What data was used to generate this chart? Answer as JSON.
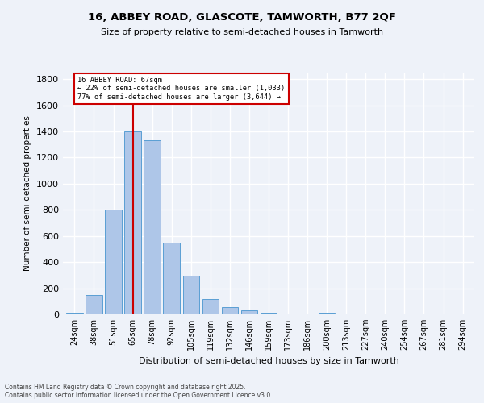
{
  "title1": "16, ABBEY ROAD, GLASCOTE, TAMWORTH, B77 2QF",
  "title2": "Size of property relative to semi-detached houses in Tamworth",
  "xlabel": "Distribution of semi-detached houses by size in Tamworth",
  "ylabel": "Number of semi-detached properties",
  "footnote1": "Contains HM Land Registry data © Crown copyright and database right 2025.",
  "footnote2": "Contains public sector information licensed under the Open Government Licence v3.0.",
  "property_label": "16 ABBEY ROAD: 67sqm",
  "pct_smaller": 22,
  "pct_larger": 77,
  "count_smaller": 1033,
  "count_larger": 3644,
  "categories": [
    "24sqm",
    "38sqm",
    "51sqm",
    "65sqm",
    "78sqm",
    "92sqm",
    "105sqm",
    "119sqm",
    "132sqm",
    "146sqm",
    "159sqm",
    "173sqm",
    "186sqm",
    "200sqm",
    "213sqm",
    "227sqm",
    "240sqm",
    "254sqm",
    "267sqm",
    "281sqm",
    "294sqm"
  ],
  "values": [
    15,
    150,
    800,
    1400,
    1330,
    550,
    295,
    120,
    55,
    30,
    15,
    5,
    0,
    10,
    0,
    0,
    0,
    0,
    0,
    0,
    5
  ],
  "bar_color": "#aec6e8",
  "bar_edge_color": "#5a9fd4",
  "vline_color": "#cc0000",
  "vline_x_index": 3,
  "box_edge_color": "#cc0000",
  "ylim": [
    0,
    1850
  ],
  "yticks": [
    0,
    200,
    400,
    600,
    800,
    1000,
    1200,
    1400,
    1600,
    1800
  ],
  "background_color": "#eef2f9",
  "grid_color": "#ffffff"
}
